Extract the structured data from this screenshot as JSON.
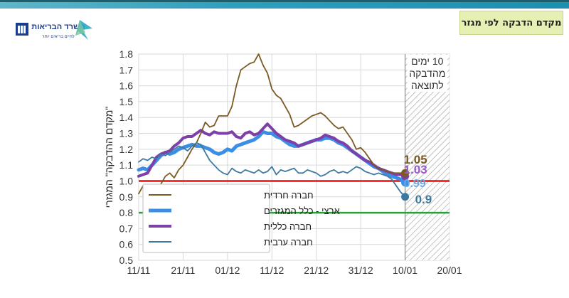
{
  "header": {
    "title": "מקדם הדבקה לפי מגזר",
    "logo_text": "משרד הבריאות",
    "logo_tagline": "לחיים בריאים יותר"
  },
  "colors": {
    "haredi": "#7b5a24",
    "national": "#3a8ee6",
    "general": "#7d3fa8",
    "arab": "#3e7aa0",
    "red_line": "#e01010",
    "green_line": "#2aa03a"
  },
  "chart_data": {
    "type": "line",
    "ylabel": "\"מקדם ההדבקה\" המגזרי",
    "xlabel": "",
    "ylim": [
      0.5,
      1.8
    ],
    "yticks": [
      "0.5",
      "0.6",
      "0.7",
      "0.8",
      "0.9",
      "1.0",
      "1.1",
      "1.2",
      "1.3",
      "1.4",
      "1.5",
      "1.6",
      "1.7",
      "1.8"
    ],
    "xlim": [
      0,
      70
    ],
    "xticks": [
      {
        "x": 0,
        "label": "11/11"
      },
      {
        "x": 10,
        "label": "21/11"
      },
      {
        "x": 20,
        "label": "01/12"
      },
      {
        "x": 30,
        "label": "11/12"
      },
      {
        "x": 40,
        "label": "21/12"
      },
      {
        "x": 50,
        "label": "31/12"
      },
      {
        "x": 60,
        "label": "10/01"
      },
      {
        "x": 70,
        "label": "20/01"
      }
    ],
    "grid": true,
    "shaded_region": {
      "x_start": 60,
      "x_end": 70,
      "label_lines": [
        "10 ימים",
        "מהדבקה",
        "לתוצאה"
      ]
    },
    "reference_lines": [
      {
        "y": 1.0,
        "color": "red"
      },
      {
        "y": 0.8,
        "color": "green"
      }
    ],
    "legend": {
      "position": "bottom-left"
    },
    "series": [
      {
        "name": "חברה חרדית",
        "key": "haredi",
        "end_label": "1.05",
        "x": [
          0,
          1,
          2,
          3,
          4,
          5,
          6,
          7,
          8,
          9,
          10,
          11,
          12,
          13,
          14,
          15,
          16,
          17,
          18,
          19,
          20,
          21,
          22,
          23,
          24,
          25,
          26,
          27,
          28,
          29,
          30,
          31,
          32,
          33,
          34,
          35,
          36,
          37,
          38,
          39,
          40,
          41,
          42,
          43,
          44,
          45,
          46,
          47,
          48,
          49,
          50,
          51,
          52,
          53,
          54,
          55,
          56,
          57,
          58,
          59,
          60
        ],
        "values": [
          0.92,
          0.97,
          0.95,
          0.92,
          0.95,
          0.98,
          1.03,
          1.05,
          1.02,
          1.07,
          1.1,
          1.15,
          1.2,
          1.24,
          1.3,
          1.37,
          1.34,
          1.35,
          1.41,
          1.41,
          1.41,
          1.47,
          1.6,
          1.7,
          1.72,
          1.74,
          1.75,
          1.8,
          1.73,
          1.68,
          1.58,
          1.54,
          1.52,
          1.47,
          1.42,
          1.34,
          1.35,
          1.37,
          1.39,
          1.41,
          1.42,
          1.43,
          1.41,
          1.38,
          1.35,
          1.33,
          1.34,
          1.3,
          1.26,
          1.2,
          1.21,
          1.18,
          1.14,
          1.1,
          1.08,
          1.07,
          1.06,
          1.05,
          1.05,
          1.05,
          1.05
        ]
      },
      {
        "name": "ארצי - כלל המגזרים",
        "key": "national",
        "end_label": "0.99",
        "x": [
          0,
          1,
          2,
          3,
          4,
          5,
          6,
          7,
          8,
          9,
          10,
          11,
          12,
          13,
          14,
          15,
          16,
          17,
          18,
          19,
          20,
          21,
          22,
          23,
          24,
          25,
          26,
          27,
          28,
          29,
          30,
          31,
          32,
          33,
          34,
          35,
          36,
          37,
          38,
          39,
          40,
          41,
          42,
          43,
          44,
          45,
          46,
          47,
          48,
          49,
          50,
          51,
          52,
          53,
          54,
          55,
          56,
          57,
          58,
          59,
          60
        ],
        "values": [
          1.07,
          1.08,
          1.07,
          1.1,
          1.13,
          1.16,
          1.18,
          1.17,
          1.18,
          1.2,
          1.21,
          1.22,
          1.23,
          1.22,
          1.22,
          1.21,
          1.2,
          1.18,
          1.17,
          1.18,
          1.2,
          1.19,
          1.22,
          1.23,
          1.24,
          1.25,
          1.26,
          1.28,
          1.31,
          1.3,
          1.3,
          1.28,
          1.27,
          1.25,
          1.23,
          1.22,
          1.22,
          1.23,
          1.24,
          1.25,
          1.26,
          1.26,
          1.27,
          1.27,
          1.26,
          1.24,
          1.23,
          1.21,
          1.19,
          1.17,
          1.15,
          1.13,
          1.11,
          1.09,
          1.08,
          1.06,
          1.04,
          1.03,
          1.02,
          1.01,
          0.99
        ]
      },
      {
        "name": "חברה כללית",
        "key": "general",
        "end_label": "1.03",
        "x": [
          0,
          1,
          2,
          3,
          4,
          5,
          6,
          7,
          8,
          9,
          10,
          11,
          12,
          13,
          14,
          15,
          16,
          17,
          18,
          19,
          20,
          21,
          22,
          23,
          24,
          25,
          26,
          27,
          28,
          29,
          30,
          31,
          32,
          33,
          34,
          35,
          36,
          37,
          38,
          39,
          40,
          41,
          42,
          43,
          44,
          45,
          46,
          47,
          48,
          49,
          50,
          51,
          52,
          53,
          54,
          55,
          56,
          57,
          58,
          59,
          60
        ],
        "values": [
          1.03,
          1.04,
          1.05,
          1.1,
          1.15,
          1.17,
          1.18,
          1.19,
          1.22,
          1.24,
          1.27,
          1.28,
          1.28,
          1.3,
          1.32,
          1.3,
          1.29,
          1.31,
          1.3,
          1.3,
          1.3,
          1.31,
          1.28,
          1.27,
          1.3,
          1.31,
          1.29,
          1.3,
          1.33,
          1.36,
          1.33,
          1.3,
          1.28,
          1.26,
          1.25,
          1.24,
          1.22,
          1.23,
          1.24,
          1.25,
          1.26,
          1.27,
          1.29,
          1.28,
          1.27,
          1.25,
          1.24,
          1.22,
          1.19,
          1.17,
          1.15,
          1.13,
          1.12,
          1.1,
          1.08,
          1.07,
          1.06,
          1.05,
          1.04,
          1.04,
          1.03
        ]
      },
      {
        "name": "חברה ערבית",
        "key": "arab",
        "end_label": "0.9",
        "x": [
          0,
          1,
          2,
          3,
          4,
          5,
          6,
          7,
          8,
          9,
          10,
          11,
          12,
          13,
          14,
          15,
          16,
          17,
          18,
          19,
          20,
          21,
          22,
          23,
          24,
          25,
          26,
          27,
          28,
          29,
          30,
          31,
          32,
          33,
          34,
          35,
          36,
          37,
          38,
          39,
          40,
          41,
          42,
          43,
          44,
          45,
          46,
          47,
          48,
          49,
          50,
          51,
          52,
          53,
          54,
          55,
          56,
          57,
          58,
          59,
          60
        ],
        "values": [
          1.12,
          1.14,
          1.13,
          1.15,
          1.14,
          1.17,
          1.16,
          1.18,
          1.2,
          1.22,
          1.21,
          1.19,
          1.22,
          1.24,
          1.23,
          1.18,
          1.13,
          1.1,
          1.07,
          1.05,
          1.04,
          1.08,
          1.06,
          1.05,
          1.07,
          1.06,
          1.05,
          1.07,
          1.05,
          1.06,
          1.09,
          1.04,
          1.07,
          1.06,
          1.07,
          1.08,
          1.05,
          1.05,
          1.07,
          1.06,
          1.05,
          1.03,
          1.04,
          1.06,
          1.07,
          1.05,
          1.06,
          1.05,
          1.07,
          1.09,
          1.08,
          1.06,
          1.05,
          1.04,
          1.05,
          1.04,
          1.03,
          1.01,
          0.97,
          0.93,
          0.9
        ]
      }
    ]
  }
}
